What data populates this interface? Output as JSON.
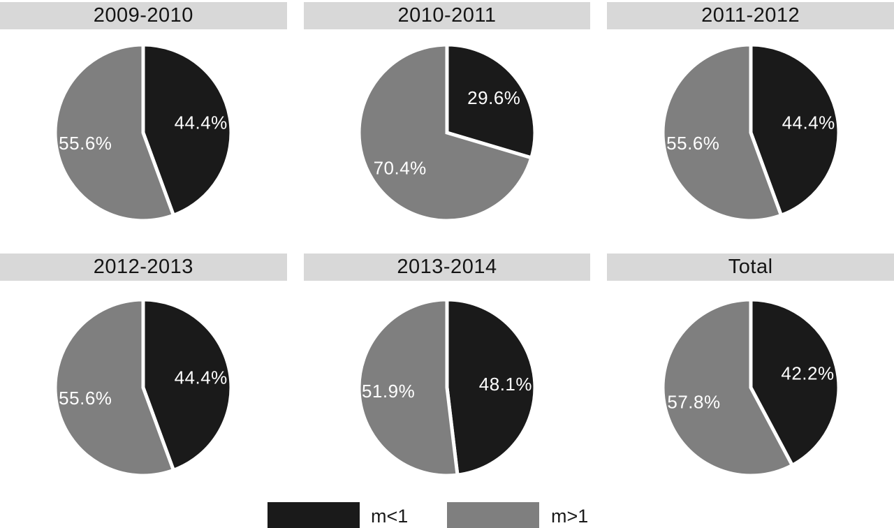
{
  "chart_data": {
    "type": "pie",
    "layout": "2 rows x 3 columns of pie charts, shared legend at bottom",
    "series_colors": {
      "m<1": "#1a1a1a",
      "m>1": "#7f7f7f"
    },
    "pies": [
      {
        "title": "2009-2010",
        "slices": [
          {
            "name": "m<1",
            "value": 44.4,
            "label": "44.4%"
          },
          {
            "name": "m>1",
            "value": 55.6,
            "label": "55.6%"
          }
        ]
      },
      {
        "title": "2010-2011",
        "slices": [
          {
            "name": "m<1",
            "value": 29.6,
            "label": "29.6%"
          },
          {
            "name": "m>1",
            "value": 70.4,
            "label": "70.4%"
          }
        ]
      },
      {
        "title": "2011-2012",
        "slices": [
          {
            "name": "m<1",
            "value": 44.4,
            "label": "44.4%"
          },
          {
            "name": "m>1",
            "value": 55.6,
            "label": "55.6%"
          }
        ]
      },
      {
        "title": "2012-2013",
        "slices": [
          {
            "name": "m<1",
            "value": 44.4,
            "label": "44.4%"
          },
          {
            "name": "m>1",
            "value": 55.6,
            "label": "55.6%"
          }
        ]
      },
      {
        "title": "2013-2014",
        "slices": [
          {
            "name": "m<1",
            "value": 48.1,
            "label": "48.1%"
          },
          {
            "name": "m>1",
            "value": 51.9,
            "label": "51.9%"
          }
        ]
      },
      {
        "title": "Total",
        "slices": [
          {
            "name": "m<1",
            "value": 42.2,
            "label": "42.2%"
          },
          {
            "name": "m>1",
            "value": 57.8,
            "label": "57.8%"
          }
        ]
      }
    ],
    "legend": {
      "position": "bottom",
      "entries": [
        {
          "label": "m<1",
          "color": "#1a1a1a"
        },
        {
          "label": "m>1",
          "color": "#7f7f7f"
        }
      ]
    },
    "start_angle": "12 o'clock, clockwise, m<1 slice first",
    "slice_label_color": "#ffffff",
    "title_band_color": "#d8d8d8"
  },
  "styles": {
    "background": "#ffffff",
    "banner_bg": "#d8d8d8",
    "label_color": "#ffffff",
    "title_color": "#141414"
  }
}
